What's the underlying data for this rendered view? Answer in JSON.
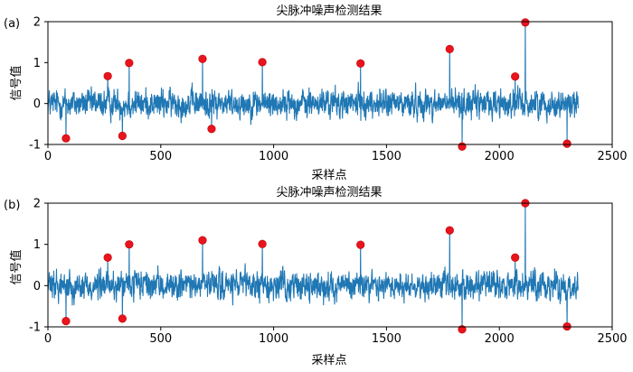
{
  "chart_data": [
    {
      "panel_label": "(a)",
      "type": "line",
      "title": "尖脉冲噪声检测结果",
      "xlabel": "采样点",
      "ylabel": "信号值",
      "xlim": [
        0,
        2500
      ],
      "ylim": [
        -1,
        2
      ],
      "xticks": [
        0,
        500,
        1000,
        1500,
        2000,
        2500
      ],
      "yticks": [
        -1,
        0,
        1,
        2
      ],
      "grid": false,
      "n_samples": 2350,
      "noise_amplitude": 0.22,
      "series_color": "#1f77b4",
      "marker_color": "#e8141e",
      "spikes": [
        {
          "x": 80,
          "y": -0.85
        },
        {
          "x": 265,
          "y": 0.67
        },
        {
          "x": 330,
          "y": -0.79
        },
        {
          "x": 360,
          "y": 0.99
        },
        {
          "x": 685,
          "y": 1.09
        },
        {
          "x": 725,
          "y": -0.62
        },
        {
          "x": 950,
          "y": 1.01
        },
        {
          "x": 1385,
          "y": 0.98
        },
        {
          "x": 1780,
          "y": 1.33
        },
        {
          "x": 1835,
          "y": -1.05
        },
        {
          "x": 2070,
          "y": 0.66
        },
        {
          "x": 2115,
          "y": 1.98
        },
        {
          "x": 2300,
          "y": -0.98
        }
      ]
    },
    {
      "panel_label": "(b)",
      "type": "line",
      "title": "尖脉冲噪声检测结果",
      "xlabel": "采样点",
      "ylabel": "信号值",
      "xlim": [
        0,
        2500
      ],
      "ylim": [
        -1,
        2
      ],
      "xticks": [
        0,
        500,
        1000,
        1500,
        2000,
        2500
      ],
      "yticks": [
        -1,
        0,
        1,
        2
      ],
      "grid": false,
      "n_samples": 2350,
      "noise_amplitude": 0.22,
      "series_color": "#1f77b4",
      "marker_color": "#e8141e",
      "spikes": [
        {
          "x": 80,
          "y": -0.86
        },
        {
          "x": 265,
          "y": 0.68
        },
        {
          "x": 330,
          "y": -0.8
        },
        {
          "x": 360,
          "y": 1.0
        },
        {
          "x": 685,
          "y": 1.1
        },
        {
          "x": 950,
          "y": 1.01
        },
        {
          "x": 1385,
          "y": 0.99
        },
        {
          "x": 1780,
          "y": 1.34
        },
        {
          "x": 1835,
          "y": -1.06
        },
        {
          "x": 2070,
          "y": 0.68
        },
        {
          "x": 2115,
          "y": 2.0
        },
        {
          "x": 2300,
          "y": -0.99
        }
      ]
    }
  ]
}
